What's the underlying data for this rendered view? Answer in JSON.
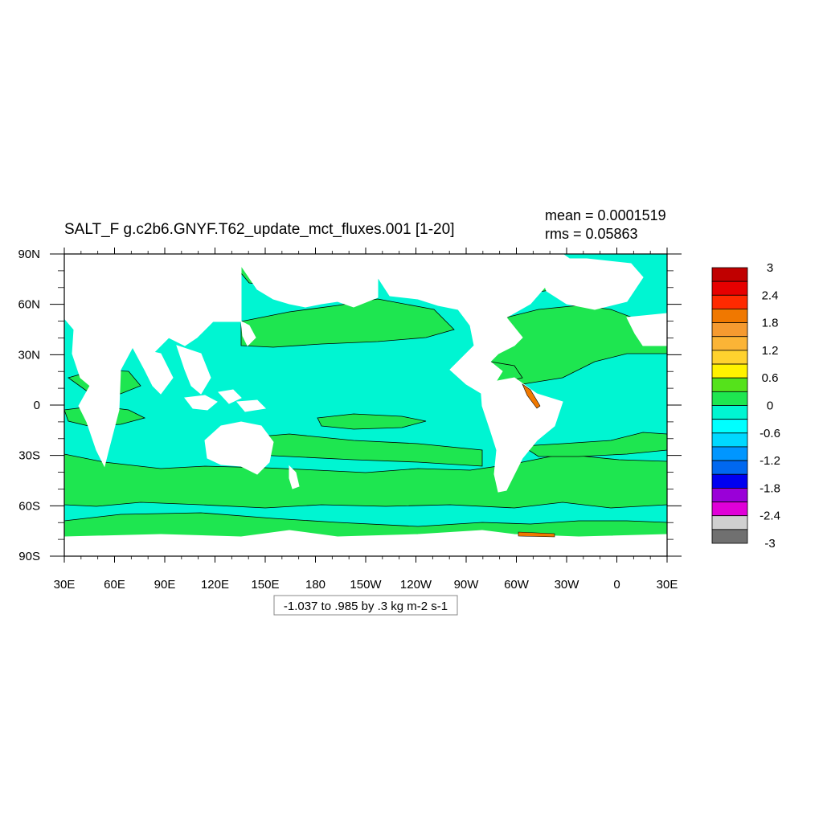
{
  "title": "SALT_F g.c2b6.GNYF.T62_update_mct_fluxes.001 [1-20]",
  "stats": {
    "mean": "mean = 0.0001519",
    "rms": "rms = 0.05863"
  },
  "contour_info": "-1.037 to .985 by .3 kg m-2 s-1",
  "axes": {
    "lon_labels": [
      "30E",
      "60E",
      "90E",
      "120E",
      "150E",
      "180",
      "150W",
      "120W",
      "90W",
      "60W",
      "30W",
      "0",
      "30E"
    ],
    "lat_labels": [
      "90N",
      "60N",
      "30N",
      "0",
      "30S",
      "60S",
      "90S"
    ]
  },
  "colorbar": {
    "labels": [
      "3",
      "2.4",
      "1.8",
      "1.2",
      "0.6",
      "0",
      "-0.6",
      "-1.2",
      "-1.8",
      "-2.4",
      "-3"
    ],
    "colors": [
      "#c00000",
      "#e60000",
      "#ff2a00",
      "#f07800",
      "#f59a30",
      "#fbb436",
      "#ffd22e",
      "#fff200",
      "#55e21b",
      "#1ee650",
      "#00f5d2",
      "#00ffff",
      "#00d8ff",
      "#0096ff",
      "#0068f0",
      "#0000f0",
      "#9a00d8",
      "#e000d8",
      "#d0d0d0",
      "#707070"
    ]
  },
  "colors": {
    "ocean_fill": "#00f5d2",
    "positive_fill": "#1ee650",
    "land_fill": "#ffffff",
    "coastal_high": "#f07800"
  }
}
